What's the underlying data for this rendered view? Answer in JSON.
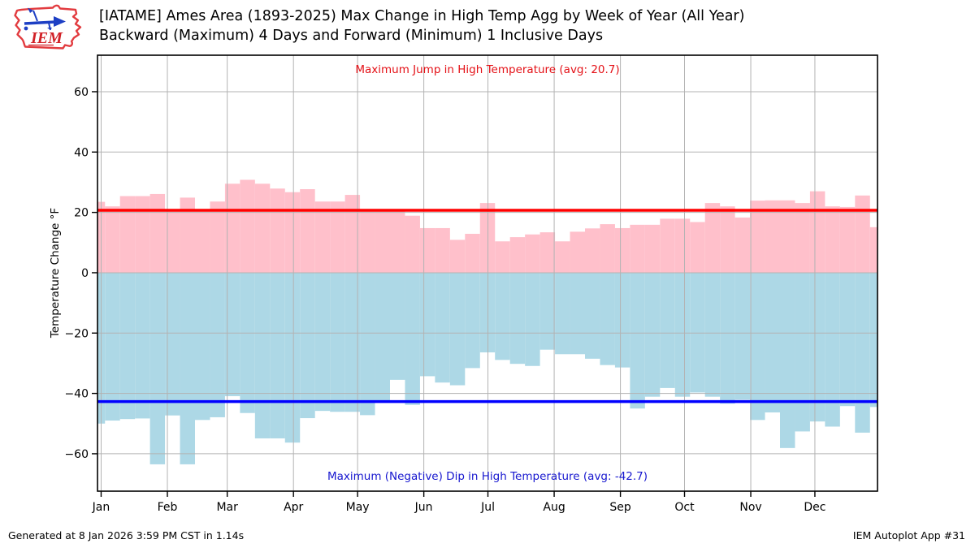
{
  "header": {
    "logo_text": "IEM",
    "title_line1": "[IATAME] Ames Area (1893-2025) Max Change in High Temp Agg by Week of Year (All Year)",
    "title_line2": "Backward (Maximum) 4 Days and Forward (Minimum) 1 Inclusive Days"
  },
  "footer": {
    "left": "Generated at 8 Jan 2026 3:59 PM CST in 1.14s",
    "right": "IEM Autoplot App #31"
  },
  "colors": {
    "red_line": "#ff0000",
    "red_fill": "#ffc0cb",
    "blue_line": "#0000ff",
    "blue_fill": "#add8e6",
    "grid": "#b3b3b3",
    "spine": "#000000"
  },
  "chart_data": {
    "type": "area",
    "title": "",
    "xlabel": "",
    "ylabel": "Temperature Change °F",
    "ylim": [
      -72.4,
      72.1
    ],
    "yticks": [
      60,
      40,
      20,
      0,
      -20,
      -40,
      -60
    ],
    "grid": true,
    "x_axis": {
      "tick_labels": [
        "Jan",
        "Feb",
        "Mar",
        "Apr",
        "May",
        "Jun",
        "Jul",
        "Aug",
        "Sep",
        "Oct",
        "Nov",
        "Dec"
      ],
      "month_start_days": [
        0,
        31,
        59,
        90,
        120,
        151,
        181,
        212,
        243,
        273,
        304,
        334
      ],
      "days_per_year": 365,
      "axis_day_offset": 1.7
    },
    "bars_note": "53 weekly bars across the year; first and last bars are half-width (clipped at year edges)",
    "series": [
      {
        "name": "max-jump-high-temp",
        "label": "Maximum Jump in High Temperature (avg: 20.7)",
        "avg": 20.7,
        "line_color": "#ff0000",
        "fill_color": "#ffc0cb",
        "values": [
          23.5,
          22.0,
          25.4,
          25.4,
          26.1,
          20.9,
          24.9,
          20.9,
          23.6,
          29.5,
          30.8,
          29.5,
          27.9,
          26.7,
          27.7,
          23.6,
          23.6,
          25.8,
          20.5,
          20.3,
          20.3,
          18.9,
          14.8,
          14.8,
          10.9,
          12.9,
          23.1,
          10.4,
          11.8,
          12.7,
          13.4,
          10.4,
          13.6,
          14.7,
          16.1,
          14.8,
          15.9,
          15.9,
          17.9,
          17.9,
          16.8,
          23.1,
          22.0,
          18.3,
          23.9,
          24.0,
          24.0,
          23.1,
          27.0,
          22.0,
          21.8,
          25.6,
          15.1
        ]
      },
      {
        "name": "max-dip-high-temp",
        "label": "Maximum (Negative) Dip in High Temperature (avg: -42.7)",
        "avg": -42.7,
        "line_color": "#0000ff",
        "fill_color": "#add8e6",
        "values": [
          -50.0,
          -49.0,
          -48.5,
          -48.3,
          -63.5,
          -47.3,
          -63.5,
          -48.8,
          -47.9,
          -40.9,
          -46.5,
          -54.9,
          -54.9,
          -56.3,
          -48.2,
          -45.8,
          -46.1,
          -46.1,
          -47.2,
          -42.6,
          -35.5,
          -43.8,
          -34.3,
          -36.4,
          -37.3,
          -31.6,
          -26.4,
          -28.9,
          -30.2,
          -30.9,
          -25.5,
          -27.0,
          -27.0,
          -28.5,
          -30.6,
          -31.4,
          -45.0,
          -41.1,
          -38.2,
          -41.1,
          -39.7,
          -41.1,
          -43.4,
          -42.1,
          -48.8,
          -46.3,
          -58.1,
          -52.6,
          -49.3,
          -51.0,
          -44.2,
          -53.0,
          -44.5
        ]
      }
    ]
  }
}
